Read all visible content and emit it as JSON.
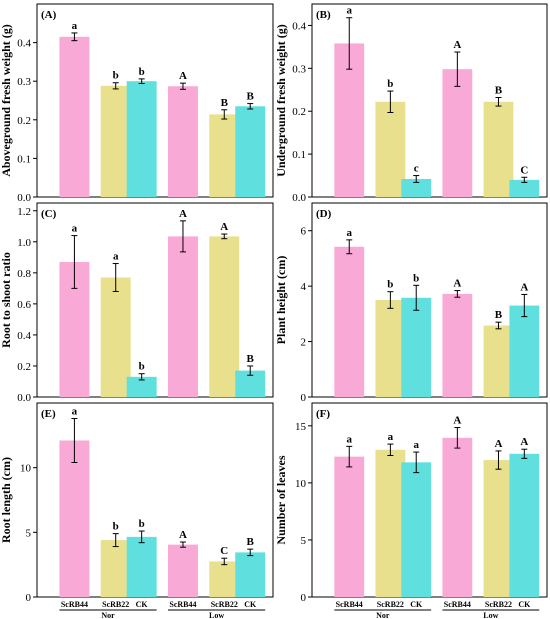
{
  "colors": {
    "ScRB44": "#f9a9d6",
    "ScRB22": "#e9e08d",
    "CK": "#5fe0df"
  },
  "chart_data": [
    {
      "type": "bar",
      "panel_label": "(A)",
      "ylabel": "Aboveground fresh weight (g)",
      "ylim": [
        0.0,
        0.5
      ],
      "yticks": [
        0.0,
        0.1,
        0.2,
        0.3,
        0.4
      ],
      "ytick_labels": [
        "0.0",
        "0.1",
        "0.2",
        "0.3",
        "0.4"
      ],
      "groups": [
        "Nor",
        "Low"
      ],
      "categories": [
        "ScRB44",
        "ScRB22",
        "CK"
      ],
      "values": [
        [
          0.415,
          0.288,
          0.3
        ],
        [
          0.287,
          0.214,
          0.235
        ]
      ],
      "errors": [
        [
          0.01,
          0.008,
          0.006
        ],
        [
          0.008,
          0.012,
          0.007
        ]
      ],
      "letters": [
        [
          "a",
          "b",
          "b"
        ],
        [
          "A",
          "B",
          "B"
        ]
      ]
    },
    {
      "type": "bar",
      "panel_label": "(B)",
      "ylabel": "Underground fresh weight (g)",
      "ylim": [
        0.0,
        0.45
      ],
      "yticks": [
        0.0,
        0.1,
        0.2,
        0.3,
        0.4
      ],
      "ytick_labels": [
        "0.0",
        "0.1",
        "0.2",
        "0.3",
        "0.4"
      ],
      "groups": [
        "Nor",
        "Low"
      ],
      "categories": [
        "ScRB44",
        "ScRB22",
        "CK"
      ],
      "values": [
        [
          0.358,
          0.222,
          0.042
        ],
        [
          0.298,
          0.222,
          0.04
        ]
      ],
      "errors": [
        [
          0.06,
          0.025,
          0.008
        ],
        [
          0.04,
          0.01,
          0.006
        ]
      ],
      "letters": [
        [
          "a",
          "b",
          "c"
        ],
        [
          "A",
          "B",
          "C"
        ]
      ]
    },
    {
      "type": "bar",
      "panel_label": "(C)",
      "ylabel": "Root to shoot ratio",
      "ylim": [
        0.0,
        1.25
      ],
      "yticks": [
        0.0,
        0.2,
        0.4,
        0.6,
        0.8,
        1.0,
        1.2
      ],
      "ytick_labels": [
        "0.0",
        "0.2",
        "0.4",
        "0.6",
        "0.8",
        "1.0",
        "1.2"
      ],
      "groups": [
        "Nor",
        "Low"
      ],
      "categories": [
        "ScRB44",
        "ScRB22",
        "CK"
      ],
      "values": [
        [
          0.87,
          0.77,
          0.13
        ],
        [
          1.035,
          1.035,
          0.17
        ]
      ],
      "errors": [
        [
          0.17,
          0.09,
          0.02
        ],
        [
          0.1,
          0.015,
          0.03
        ]
      ],
      "letters": [
        [
          "a",
          "a",
          "b"
        ],
        [
          "A",
          "A",
          "B"
        ]
      ]
    },
    {
      "type": "bar",
      "panel_label": "(D)",
      "ylabel": "Plant height (cm)",
      "ylim": [
        0,
        7
      ],
      "yticks": [
        0,
        2,
        4,
        6
      ],
      "ytick_labels": [
        "0",
        "2",
        "4",
        "6"
      ],
      "groups": [
        "Nor",
        "Low"
      ],
      "categories": [
        "ScRB44",
        "ScRB22",
        "CK"
      ],
      "values": [
        [
          5.42,
          3.5,
          3.58
        ],
        [
          3.72,
          2.58,
          3.3
        ]
      ],
      "errors": [
        [
          0.25,
          0.3,
          0.45
        ],
        [
          0.12,
          0.12,
          0.4
        ]
      ],
      "letters": [
        [
          "a",
          "b",
          "b"
        ],
        [
          "A",
          "B",
          "A"
        ]
      ]
    },
    {
      "type": "bar",
      "panel_label": "(E)",
      "ylabel": "Root length (cm)",
      "ylim": [
        0,
        15
      ],
      "yticks": [
        0,
        5,
        10
      ],
      "ytick_labels": [
        "0",
        "5",
        "10"
      ],
      "groups": [
        "Nor",
        "Low"
      ],
      "categories": [
        "ScRB44",
        "ScRB22",
        "CK"
      ],
      "values": [
        [
          12.1,
          4.4,
          4.65
        ],
        [
          4.05,
          2.75,
          3.45
        ]
      ],
      "errors": [
        [
          1.7,
          0.5,
          0.45
        ],
        [
          0.2,
          0.25,
          0.25
        ]
      ],
      "letters": [
        [
          "a",
          "b",
          "b"
        ],
        [
          "A",
          "C",
          "B"
        ]
      ]
    },
    {
      "type": "bar",
      "panel_label": "(F)",
      "ylabel": "Number of leaves",
      "ylim": [
        0,
        17
      ],
      "yticks": [
        0,
        5,
        10,
        15
      ],
      "ytick_labels": [
        "0",
        "5",
        "10",
        "15"
      ],
      "groups": [
        "Nor",
        "Low"
      ],
      "categories": [
        "ScRB44",
        "ScRB22",
        "CK"
      ],
      "values": [
        [
          12.3,
          12.9,
          11.8
        ],
        [
          13.95,
          12.0,
          12.55
        ]
      ],
      "errors": [
        [
          0.9,
          0.5,
          0.9
        ],
        [
          0.9,
          0.8,
          0.4
        ]
      ],
      "letters": [
        [
          "a",
          "a",
          "a"
        ],
        [
          "A",
          "A",
          "A"
        ]
      ]
    }
  ]
}
